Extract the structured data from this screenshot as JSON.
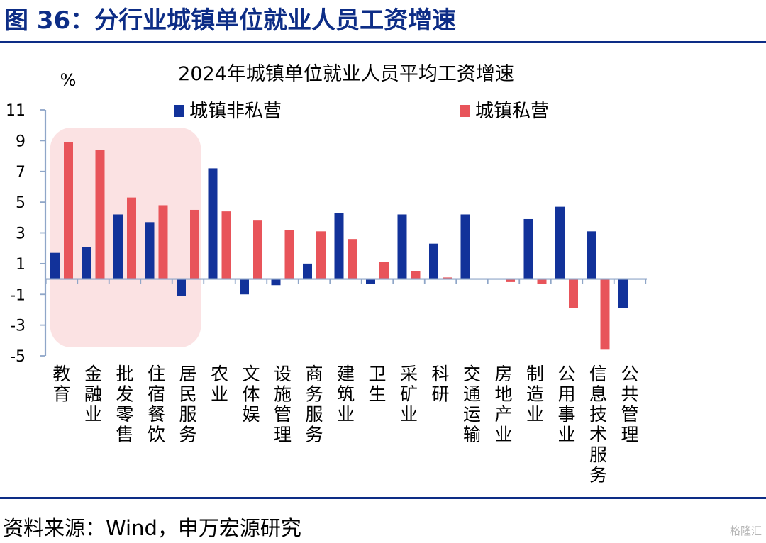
{
  "figure_title": "图 36：分行业城镇单位就业人员工资增速",
  "source_note": "资料来源：Wind，申万宏源研究",
  "watermark": "格隆汇",
  "colors": {
    "brand": "#0d2d86",
    "non_private": "#12329a",
    "private": "#e8545a",
    "highlight": "#fbe2e3",
    "axis": "#8fa6c8"
  },
  "chart_data": {
    "type": "bar",
    "title": "2024年城镇单位就业人员平均工资增速",
    "ylabel": "%",
    "ylim": [
      -5,
      11
    ],
    "yticks": [
      11,
      9,
      7,
      5,
      3,
      1,
      -1,
      -3,
      -5
    ],
    "legend_position": "top",
    "categories": [
      "教育",
      "金融业",
      "批发零售",
      "住宿餐饮",
      "居民服务",
      "农业",
      "文体娱",
      "设施管理",
      "商务服务",
      "建筑业",
      "卫生",
      "采矿业",
      "科研",
      "交通运输",
      "房地产业",
      "制造业",
      "公用事业",
      "信息技术服务",
      "公共管理"
    ],
    "series": [
      {
        "name": "城镇非私营",
        "color": "#12329a",
        "values": [
          1.7,
          2.1,
          4.2,
          3.7,
          -1.1,
          7.2,
          -1.0,
          -0.4,
          1.0,
          4.3,
          -0.3,
          4.2,
          2.3,
          4.2,
          0.0,
          3.9,
          4.7,
          3.1,
          -1.9
        ]
      },
      {
        "name": "城镇私营",
        "color": "#e8545a",
        "values": [
          8.9,
          8.4,
          5.3,
          4.8,
          4.5,
          4.4,
          3.8,
          3.2,
          3.1,
          2.6,
          1.1,
          0.5,
          0.1,
          0.0,
          -0.2,
          -0.3,
          -1.9,
          -4.6,
          null
        ]
      }
    ],
    "highlight_group": [
      "教育",
      "金融业",
      "批发零售",
      "住宿餐饮",
      "居民服务"
    ]
  }
}
